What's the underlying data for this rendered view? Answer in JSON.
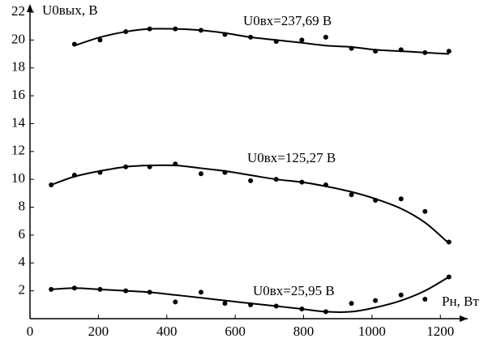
{
  "chart_data": {
    "type": "scatter",
    "y_label": "U0вых, В",
    "x_label": "Pн, Вт",
    "xlim": [
      0,
      1280
    ],
    "xticks": [
      0,
      200,
      400,
      600,
      800,
      1000,
      1200
    ],
    "ylim": [
      0,
      22
    ],
    "yticks": [
      2,
      4,
      6,
      8,
      10,
      12,
      14,
      16,
      18,
      20,
      22
    ],
    "series": [
      {
        "name": "U0вх=237,69 В",
        "color": "#000000",
        "x": [
          130,
          205,
          280,
          350,
          425,
          500,
          570,
          645,
          720,
          795,
          865,
          940,
          1010,
          1085,
          1155,
          1225
        ],
        "values": [
          19.7,
          20.0,
          20.6,
          20.8,
          20.8,
          20.7,
          20.4,
          20.2,
          19.9,
          20.0,
          20.2,
          19.4,
          19.2,
          19.3,
          19.1,
          19.2
        ],
        "trend": [
          19.6,
          20.2,
          20.6,
          20.8,
          20.8,
          20.7,
          20.5,
          20.2,
          20.0,
          19.8,
          19.6,
          19.5,
          19.3,
          19.2,
          19.1,
          19.0
        ]
      },
      {
        "name": "U0вх=125,27 В",
        "color": "#000000",
        "x": [
          62,
          130,
          205,
          280,
          350,
          425,
          500,
          570,
          645,
          720,
          795,
          865,
          940,
          1010,
          1085,
          1155,
          1225
        ],
        "values": [
          9.6,
          10.3,
          10.5,
          10.9,
          10.9,
          11.1,
          10.4,
          10.5,
          9.9,
          10.0,
          9.8,
          9.6,
          8.9,
          8.5,
          8.6,
          7.7,
          5.5
        ],
        "trend": [
          9.6,
          10.2,
          10.6,
          10.9,
          11.0,
          11.0,
          10.8,
          10.6,
          10.3,
          10.0,
          9.8,
          9.5,
          9.1,
          8.6,
          7.9,
          6.9,
          5.4
        ]
      },
      {
        "name": "U0вх=25,95 В",
        "color": "#000000",
        "x": [
          62,
          130,
          205,
          280,
          350,
          425,
          500,
          570,
          645,
          720,
          795,
          865,
          940,
          1010,
          1085,
          1155,
          1225
        ],
        "values": [
          2.1,
          2.2,
          2.1,
          2.0,
          1.9,
          1.2,
          1.9,
          1.1,
          1.0,
          0.9,
          0.7,
          0.5,
          1.1,
          1.3,
          1.7,
          1.4,
          3.0
        ],
        "trend": [
          2.1,
          2.2,
          2.1,
          2.0,
          1.9,
          1.7,
          1.5,
          1.3,
          1.1,
          0.9,
          0.7,
          0.5,
          0.5,
          0.8,
          1.3,
          2.0,
          3.0
        ]
      }
    ]
  }
}
